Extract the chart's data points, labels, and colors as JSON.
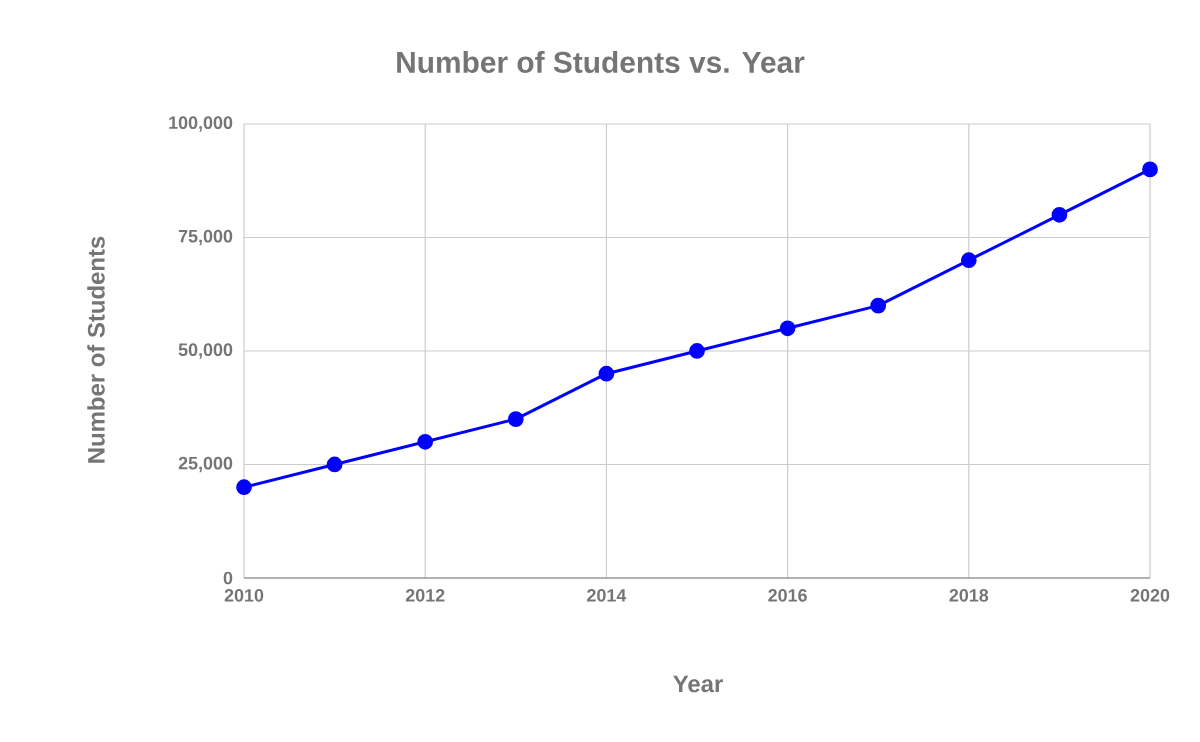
{
  "chart_data": {
    "type": "line",
    "title": "Number of Students vs. Year",
    "xlabel": "Year",
    "ylabel": "Number of Students",
    "x": [
      2010,
      2011,
      2012,
      2013,
      2014,
      2015,
      2016,
      2017,
      2018,
      2019,
      2020
    ],
    "series": [
      {
        "color": "#0000ff",
        "values": [
          20000,
          25000,
          30000,
          35000,
          45000,
          50000,
          55000,
          60000,
          70000,
          80000,
          90000
        ]
      }
    ],
    "xlim": [
      2010,
      2020
    ],
    "xticks": [
      2010,
      2012,
      2014,
      2016,
      2018,
      2020
    ],
    "ylim": [
      0,
      100000
    ],
    "yticks": [
      0,
      {
        "value": 25000,
        "label": "25,000"
      },
      {
        "value": 50000,
        "label": "50,000"
      },
      {
        "value": 75000,
        "label": "75,000"
      },
      {
        "value": 100000,
        "label": "100,000"
      }
    ],
    "grid": true,
    "marker": "circle",
    "line_style": "solid"
  }
}
